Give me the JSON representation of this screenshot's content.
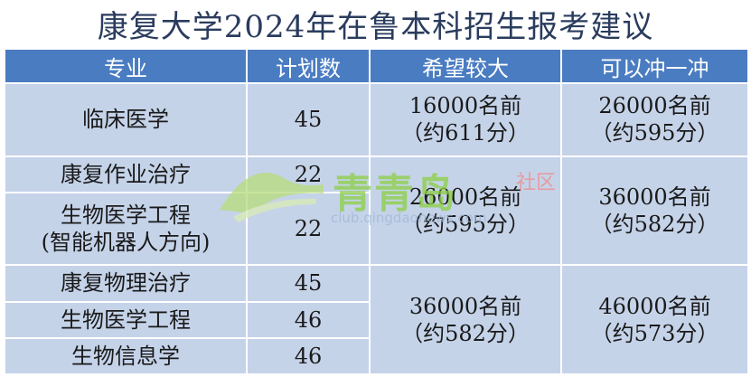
{
  "title": "康复大学2024年在鲁本科招生报考建议",
  "headers": {
    "major": "专业",
    "plan": "计划数",
    "hope": "希望较大",
    "try": "可以冲一冲"
  },
  "groups": [
    {
      "rows": [
        {
          "major": "临床医学",
          "plan": "45"
        }
      ],
      "hope": {
        "rank": "16000名前",
        "score": "（约611分）"
      },
      "try": {
        "rank": "26000名前",
        "score": "（约595分）"
      }
    },
    {
      "rows": [
        {
          "major": "康复作业治疗",
          "plan": "22"
        },
        {
          "major": "生物医学工程\n(智能机器人方向)",
          "plan": "22"
        }
      ],
      "hope": {
        "rank": "26000名前",
        "score": "（约595分）"
      },
      "try": {
        "rank": "36000名前",
        "score": "（约582分）"
      }
    },
    {
      "rows": [
        {
          "major": "康复物理治疗",
          "plan": "45"
        },
        {
          "major": "生物医学工程",
          "plan": "46"
        },
        {
          "major": "生物信息学",
          "plan": "46"
        }
      ],
      "hope": {
        "rank": "36000名前",
        "score": "（约582分）"
      },
      "try": {
        "rank": "46000名前",
        "score": "（约573分）"
      }
    }
  ],
  "watermark": {
    "text": "青青岛",
    "tag": "社区",
    "url": "club.qingdaonews.com"
  },
  "colors": {
    "header_bg": "#4a7cc2",
    "cell_bg": "#c5d3e9",
    "title_text": "#2a3c5e"
  }
}
